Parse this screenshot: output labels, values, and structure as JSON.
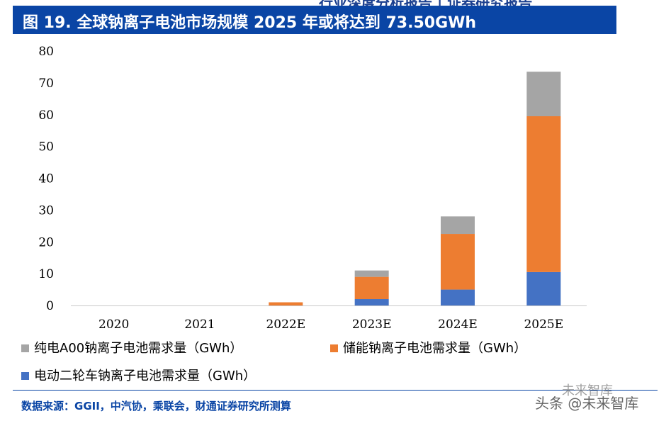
{
  "header": {
    "partial_text": "行业深度分析报告 | 证券研究报告"
  },
  "title": "图 19. 全球钠离子电池市场规模 2025 年或将达到 73.50GWh",
  "chart_data": {
    "type": "bar",
    "stacked": true,
    "categories": [
      "2020",
      "2021",
      "2022E",
      "2023E",
      "2024E",
      "2025E"
    ],
    "series": [
      {
        "name": "电动二轮车钠离子电池需求量（GWh）",
        "color": "#4472c4",
        "values": [
          0,
          0,
          0,
          2.0,
          5.0,
          10.5
        ]
      },
      {
        "name": "储能钠离子电池需求量（GWh）",
        "color": "#ed7d31",
        "values": [
          0,
          0,
          1.0,
          7.0,
          17.5,
          49.0
        ]
      },
      {
        "name": "纯电A00钠离子电池需求量（GWh）",
        "color": "#a5a5a5",
        "values": [
          0,
          0,
          0,
          2.0,
          5.5,
          14.0
        ]
      }
    ],
    "ylim": [
      0,
      80
    ],
    "yticks": [
      0,
      10,
      20,
      30,
      40,
      50,
      60,
      70,
      80
    ],
    "grid": false,
    "legend_position": "bottom"
  },
  "footer": {
    "source": "数据来源：GGII，中汽协，乘联会，财通证券研究所测算",
    "watermark": "头条 @未来智库",
    "watermark_top": "未来智库"
  }
}
